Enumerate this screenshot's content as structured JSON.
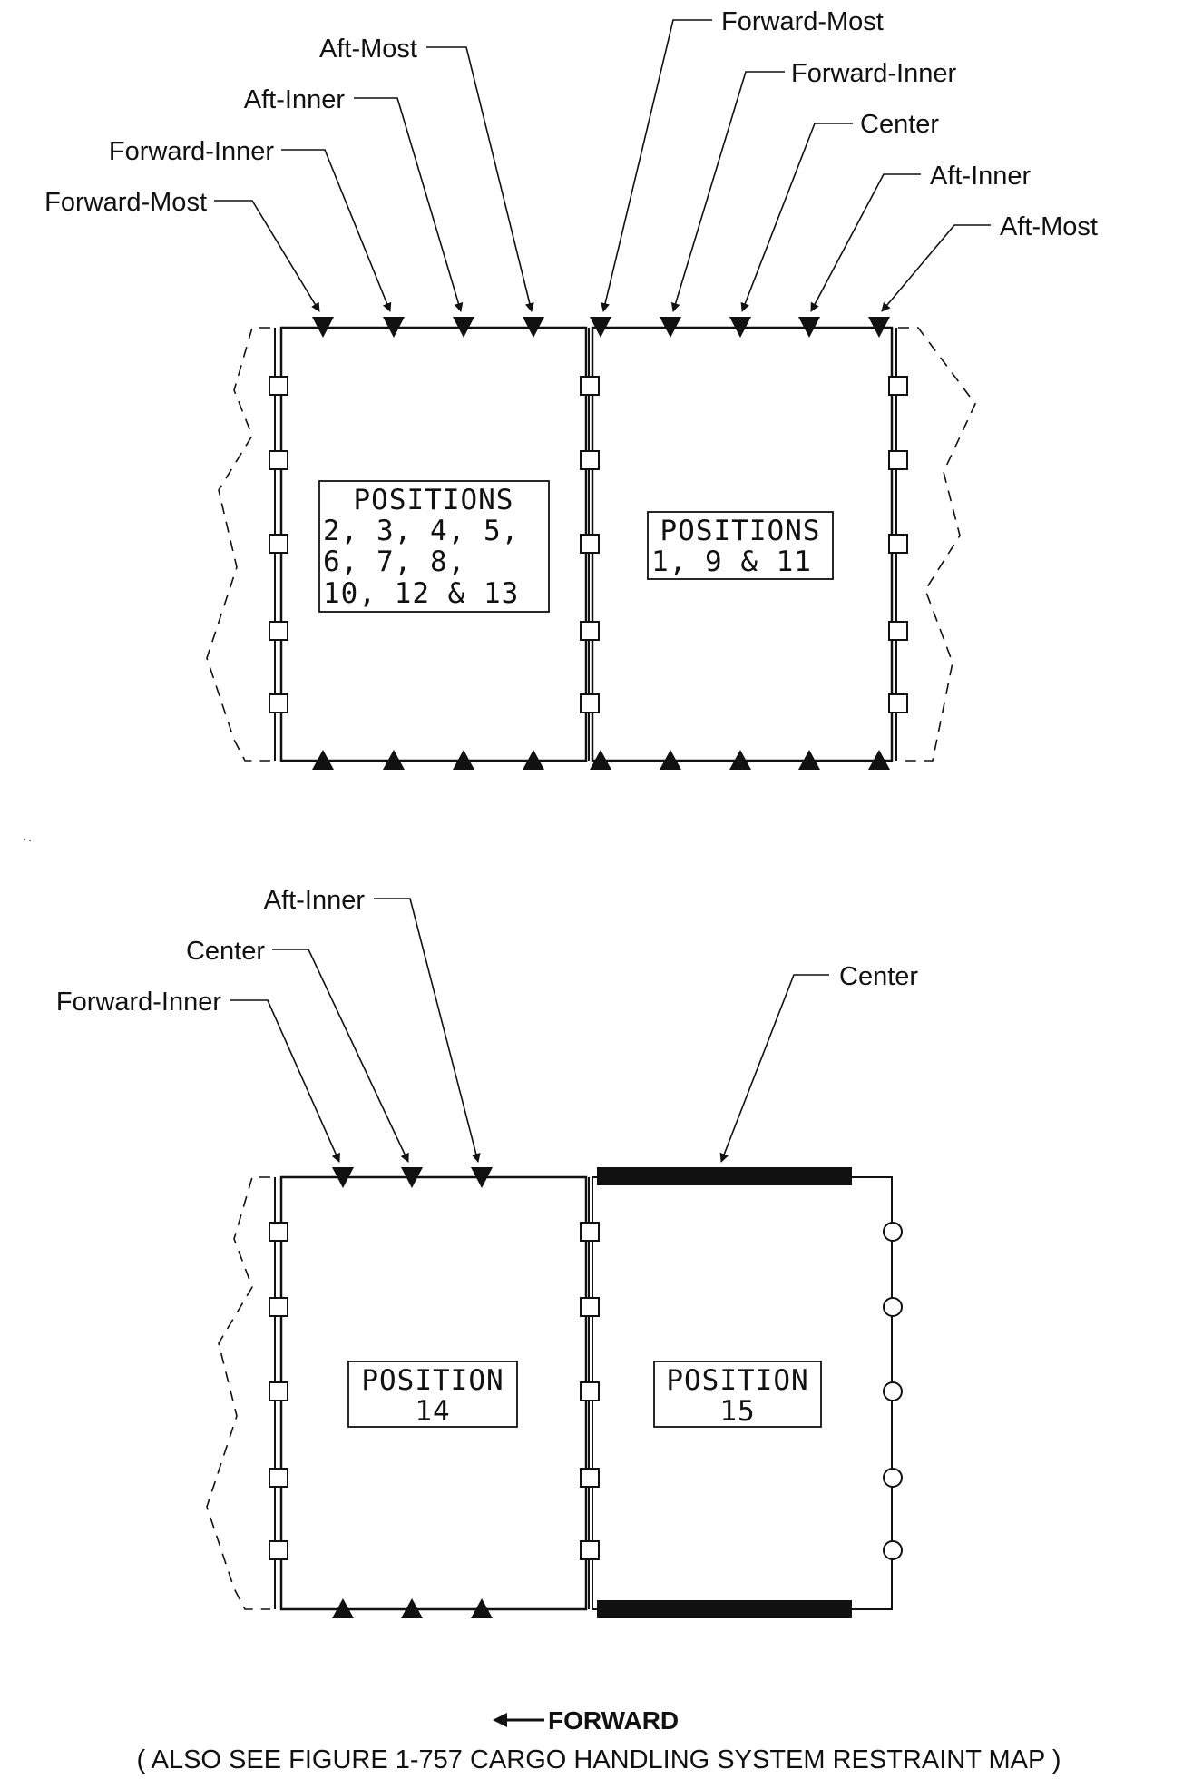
{
  "top_diagram": {
    "left_callouts": [
      "Forward-Most",
      "Forward-Inner",
      "Aft-Inner",
      "Aft-Most"
    ],
    "right_callouts": [
      "Forward-Most",
      "Forward-Inner",
      "Center",
      "Aft-Inner",
      "Aft-Most"
    ],
    "left_box": [
      "POSITIONS",
      "2, 3, 4, 5,",
      "6, 7, 8,",
      "10, 12 & 13"
    ],
    "right_box": [
      "POSITIONS",
      "1, 9 & 11"
    ]
  },
  "bottom_diagram": {
    "left_callouts": [
      "Forward-Inner",
      "Center",
      "Aft-Inner"
    ],
    "right_callout": "Center",
    "left_box": [
      "POSITION",
      "14"
    ],
    "right_box": [
      "POSITION",
      "15"
    ]
  },
  "forward_label": "FORWARD",
  "caption": "( ALSO SEE FIGURE 1-757 CARGO HANDLING SYSTEM RESTRAINT MAP )",
  "colors": {
    "ink": "#111111",
    "background": "#ffffff"
  }
}
